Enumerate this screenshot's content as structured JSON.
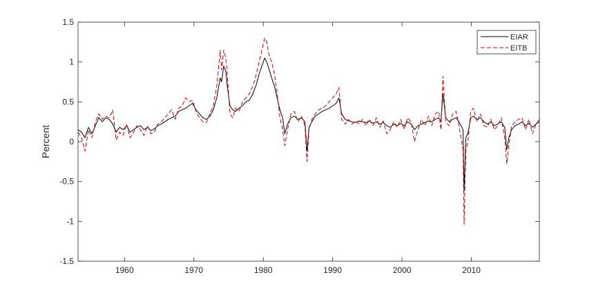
{
  "chart_data": {
    "type": "line",
    "title": "",
    "xlabel": "",
    "ylabel": "Percent",
    "xlim": [
      1953.3,
      2019.8
    ],
    "ylim": [
      -1.5,
      1.5
    ],
    "xticks": [
      1960,
      1970,
      1980,
      1990,
      2000,
      2010
    ],
    "xtick_labels": [
      "1960",
      "1970",
      "1980",
      "1990",
      "2000",
      "2010"
    ],
    "yticks": [
      -1.5,
      -1,
      -0.5,
      0,
      0.5,
      1,
      1.5
    ],
    "ytick_labels": [
      "-1.5",
      "-1",
      "-0.5",
      "0",
      "0.5",
      "1",
      "1.5"
    ],
    "grid": false,
    "legend_position": "top-right",
    "series": [
      {
        "name": "EIAR",
        "color": "#000000",
        "style": "solid",
        "x": [
          1953.3,
          1953.8,
          1954.3,
          1954.8,
          1955.3,
          1955.8,
          1956.3,
          1956.8,
          1957.3,
          1957.8,
          1958.3,
          1958.8,
          1959.3,
          1959.8,
          1960.3,
          1960.8,
          1961.3,
          1961.8,
          1962.3,
          1962.8,
          1963.3,
          1963.8,
          1964.3,
          1964.8,
          1965.3,
          1965.8,
          1966.3,
          1966.8,
          1967.3,
          1967.8,
          1968.3,
          1968.8,
          1969.3,
          1969.8,
          1970.3,
          1970.8,
          1971.3,
          1971.8,
          1972.3,
          1972.8,
          1973.3,
          1973.8,
          1974.0,
          1974.3,
          1974.6,
          1974.8,
          1975.2,
          1975.6,
          1976.0,
          1976.5,
          1977.0,
          1977.5,
          1978.0,
          1978.5,
          1979.0,
          1979.4,
          1979.8,
          1980.2,
          1980.5,
          1980.8,
          1981.2,
          1981.6,
          1982.0,
          1982.4,
          1982.8,
          1983.1,
          1983.5,
          1984.0,
          1984.5,
          1985.0,
          1985.5,
          1986.0,
          1986.3,
          1986.6,
          1987.0,
          1987.5,
          1988.0,
          1988.5,
          1989.0,
          1989.5,
          1990.0,
          1990.5,
          1990.9,
          1991.3,
          1991.8,
          1992.3,
          1992.8,
          1993.3,
          1993.8,
          1994.3,
          1994.8,
          1995.3,
          1995.8,
          1996.3,
          1996.8,
          1997.3,
          1997.8,
          1998.3,
          1998.8,
          1999.3,
          1999.8,
          2000.3,
          2000.8,
          2001.3,
          2001.8,
          2002.3,
          2002.8,
          2003.3,
          2003.8,
          2004.3,
          2004.8,
          2005.3,
          2005.6,
          2005.9,
          2006.3,
          2006.8,
          2007.3,
          2007.8,
          2008.2,
          2008.5,
          2008.8,
          2008.95,
          2009.2,
          2009.5,
          2009.9,
          2010.3,
          2010.8,
          2011.3,
          2011.8,
          2012.3,
          2012.8,
          2013.3,
          2013.8,
          2014.3,
          2014.8,
          2015.1,
          2015.4,
          2015.8,
          2016.3,
          2016.8,
          2017.3,
          2017.8,
          2018.3,
          2018.8,
          2019.3,
          2019.8
        ],
        "y": [
          0.15,
          0.12,
          0.05,
          0.18,
          0.1,
          0.2,
          0.3,
          0.25,
          0.3,
          0.28,
          0.22,
          0.12,
          0.18,
          0.15,
          0.2,
          0.12,
          0.15,
          0.18,
          0.2,
          0.15,
          0.18,
          0.14,
          0.16,
          0.2,
          0.22,
          0.25,
          0.28,
          0.3,
          0.32,
          0.38,
          0.4,
          0.42,
          0.45,
          0.48,
          0.4,
          0.35,
          0.3,
          0.28,
          0.32,
          0.4,
          0.55,
          0.8,
          0.75,
          0.95,
          0.88,
          0.7,
          0.45,
          0.4,
          0.38,
          0.42,
          0.45,
          0.5,
          0.52,
          0.6,
          0.72,
          0.85,
          0.95,
          1.05,
          1.0,
          0.92,
          0.8,
          0.7,
          0.55,
          0.4,
          0.3,
          0.1,
          0.22,
          0.3,
          0.32,
          0.28,
          0.3,
          0.25,
          -0.12,
          0.18,
          0.25,
          0.32,
          0.35,
          0.38,
          0.4,
          0.42,
          0.45,
          0.48,
          0.55,
          0.35,
          0.28,
          0.26,
          0.25,
          0.24,
          0.26,
          0.25,
          0.24,
          0.26,
          0.23,
          0.25,
          0.22,
          0.24,
          0.2,
          0.18,
          0.22,
          0.2,
          0.23,
          0.2,
          0.25,
          0.22,
          0.15,
          0.2,
          0.22,
          0.24,
          0.26,
          0.25,
          0.28,
          0.3,
          0.25,
          0.6,
          0.3,
          0.25,
          0.28,
          0.3,
          0.25,
          0.2,
          0.15,
          -0.62,
          0.05,
          0.1,
          0.3,
          0.32,
          0.28,
          0.3,
          0.25,
          0.22,
          0.25,
          0.2,
          0.22,
          0.25,
          0.18,
          -0.1,
          0.05,
          0.15,
          0.2,
          0.22,
          0.25,
          0.2,
          0.23,
          0.18,
          0.22,
          0.25
        ]
      },
      {
        "name": "EITB",
        "color": "#d40000",
        "style": "dashed",
        "x": [
          1953.3,
          1953.8,
          1954.3,
          1954.8,
          1955.3,
          1955.8,
          1956.3,
          1956.8,
          1957.3,
          1957.8,
          1958.3,
          1958.8,
          1959.3,
          1959.8,
          1960.3,
          1960.8,
          1961.3,
          1961.8,
          1962.3,
          1962.8,
          1963.3,
          1963.8,
          1964.3,
          1964.8,
          1965.3,
          1965.8,
          1966.3,
          1966.8,
          1967.3,
          1967.8,
          1968.3,
          1968.8,
          1969.3,
          1969.8,
          1970.3,
          1970.8,
          1971.3,
          1971.8,
          1972.3,
          1972.8,
          1973.3,
          1973.8,
          1974.0,
          1974.3,
          1974.6,
          1974.8,
          1975.2,
          1975.6,
          1976.0,
          1976.5,
          1977.0,
          1977.5,
          1978.0,
          1978.5,
          1979.0,
          1979.4,
          1979.8,
          1980.2,
          1980.5,
          1980.8,
          1981.2,
          1981.6,
          1982.0,
          1982.4,
          1982.8,
          1983.1,
          1983.5,
          1984.0,
          1984.5,
          1985.0,
          1985.5,
          1986.0,
          1986.3,
          1986.6,
          1987.0,
          1987.5,
          1988.0,
          1988.5,
          1989.0,
          1989.5,
          1990.0,
          1990.5,
          1990.9,
          1991.3,
          1991.8,
          1992.3,
          1992.8,
          1993.3,
          1993.8,
          1994.3,
          1994.8,
          1995.3,
          1995.8,
          1996.3,
          1996.8,
          1997.3,
          1997.8,
          1998.3,
          1998.8,
          1999.3,
          1999.8,
          2000.3,
          2000.8,
          2001.3,
          2001.8,
          2002.3,
          2002.8,
          2003.3,
          2003.8,
          2004.3,
          2004.8,
          2005.3,
          2005.6,
          2005.9,
          2006.3,
          2006.8,
          2007.3,
          2007.8,
          2008.2,
          2008.5,
          2008.8,
          2008.95,
          2009.2,
          2009.5,
          2009.9,
          2010.3,
          2010.8,
          2011.3,
          2011.8,
          2012.3,
          2012.8,
          2013.3,
          2013.8,
          2014.3,
          2014.8,
          2015.1,
          2015.4,
          2015.8,
          2016.3,
          2016.8,
          2017.3,
          2017.8,
          2018.3,
          2018.8,
          2019.3,
          2019.8
        ],
        "y": [
          0.12,
          0.05,
          -0.12,
          0.15,
          0.05,
          0.25,
          0.35,
          0.28,
          0.32,
          0.3,
          0.4,
          0.02,
          0.12,
          0.08,
          0.22,
          0.05,
          0.12,
          0.2,
          0.15,
          0.08,
          0.2,
          0.1,
          0.12,
          0.22,
          0.25,
          0.3,
          0.35,
          0.4,
          0.28,
          0.42,
          0.45,
          0.55,
          0.5,
          0.52,
          0.38,
          0.3,
          0.25,
          0.24,
          0.35,
          0.45,
          0.7,
          1.15,
          0.9,
          1.15,
          1.05,
          0.85,
          0.35,
          0.3,
          0.42,
          0.38,
          0.5,
          0.55,
          0.6,
          0.7,
          0.85,
          1.0,
          1.15,
          1.3,
          1.25,
          1.1,
          1.0,
          0.85,
          0.6,
          0.3,
          0.15,
          -0.05,
          0.15,
          0.35,
          0.38,
          0.25,
          0.32,
          0.2,
          -0.25,
          0.15,
          0.28,
          0.35,
          0.4,
          0.42,
          0.45,
          0.5,
          0.55,
          0.6,
          0.68,
          0.28,
          0.22,
          0.28,
          0.22,
          0.26,
          0.22,
          0.28,
          0.2,
          0.28,
          0.2,
          0.3,
          0.18,
          0.26,
          0.1,
          0.15,
          0.25,
          0.18,
          0.28,
          0.15,
          0.3,
          0.25,
          0.0,
          0.15,
          0.28,
          0.2,
          0.32,
          0.2,
          0.35,
          0.38,
          0.15,
          0.82,
          0.25,
          0.2,
          0.35,
          0.38,
          0.2,
          0.05,
          -0.1,
          -1.04,
          -0.1,
          0.0,
          0.38,
          0.42,
          0.25,
          0.35,
          0.2,
          0.18,
          0.28,
          0.15,
          0.2,
          0.3,
          0.05,
          -0.28,
          -0.05,
          0.2,
          0.25,
          0.28,
          0.3,
          0.15,
          0.28,
          0.1,
          0.22,
          0.28
        ]
      }
    ]
  }
}
